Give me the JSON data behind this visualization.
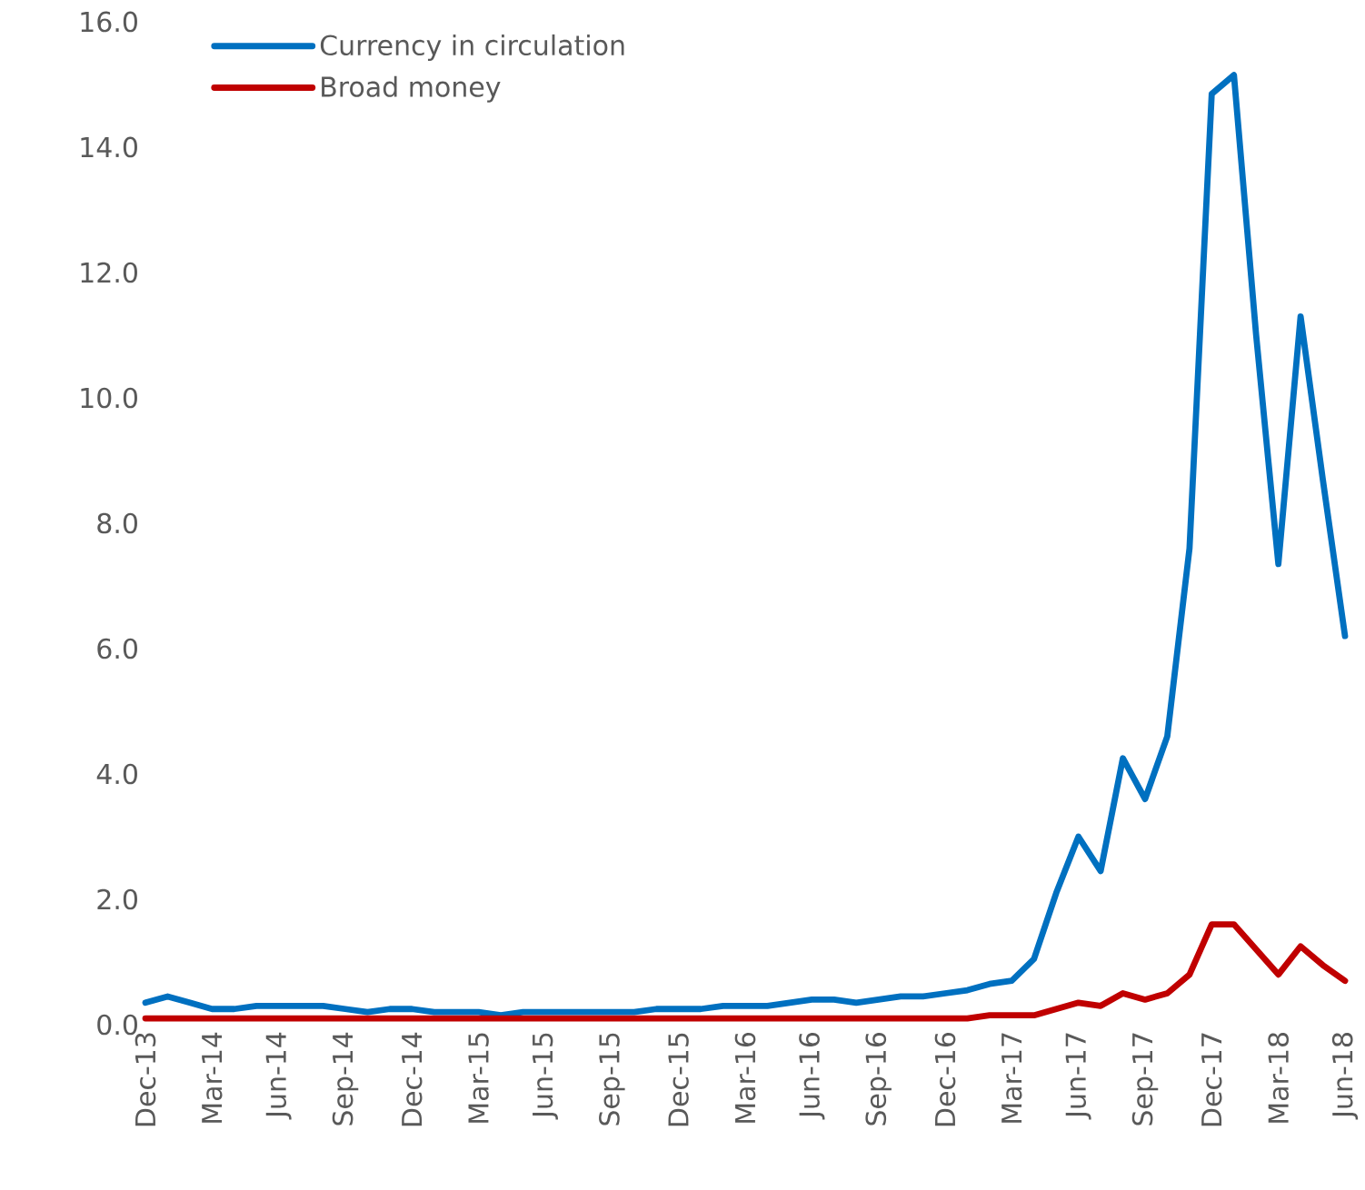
{
  "chart_data": {
    "type": "line",
    "categories": [
      "Dec-13",
      null,
      null,
      "Mar-14",
      null,
      null,
      "Jun-14",
      null,
      null,
      "Sep-14",
      null,
      null,
      "Dec-14",
      null,
      null,
      "Mar-15",
      null,
      null,
      "Jun-15",
      null,
      null,
      "Sep-15",
      null,
      null,
      "Dec-15",
      null,
      null,
      "Mar-16",
      null,
      null,
      "Jun-16",
      null,
      null,
      "Sep-16",
      null,
      null,
      "Dec-16",
      null,
      null,
      "Mar-17",
      null,
      null,
      "Jun-17",
      null,
      null,
      "Sep-17",
      null,
      null,
      "Dec-17",
      null,
      null,
      "Mar-18",
      null,
      null,
      "Jun-18"
    ],
    "series": [
      {
        "name": "Currency in circulation",
        "color": "#0070c0",
        "values": [
          0.35,
          0.45,
          0.35,
          0.25,
          0.25,
          0.3,
          0.3,
          0.3,
          0.3,
          0.25,
          0.2,
          0.25,
          0.25,
          0.2,
          0.2,
          0.2,
          0.15,
          0.2,
          0.2,
          0.2,
          0.2,
          0.2,
          0.2,
          0.25,
          0.25,
          0.25,
          0.3,
          0.3,
          0.3,
          0.35,
          0.4,
          0.4,
          0.35,
          0.4,
          0.45,
          0.45,
          0.5,
          0.55,
          0.65,
          0.7,
          1.05,
          2.1,
          3.0,
          2.45,
          4.25,
          3.6,
          4.6,
          7.6,
          14.85,
          15.15,
          11.0,
          7.35,
          11.3,
          8.7,
          6.2
        ]
      },
      {
        "name": "Broad money",
        "color": "#c00000",
        "values": [
          0.1,
          0.1,
          0.1,
          0.1,
          0.1,
          0.1,
          0.1,
          0.1,
          0.1,
          0.1,
          0.1,
          0.1,
          0.1,
          0.1,
          0.1,
          0.1,
          0.1,
          0.1,
          0.1,
          0.1,
          0.1,
          0.1,
          0.1,
          0.1,
          0.1,
          0.1,
          0.1,
          0.1,
          0.1,
          0.1,
          0.1,
          0.1,
          0.1,
          0.1,
          0.1,
          0.1,
          0.1,
          0.1,
          0.15,
          0.15,
          0.15,
          0.25,
          0.35,
          0.3,
          0.5,
          0.4,
          0.5,
          0.8,
          1.6,
          1.6,
          1.2,
          0.8,
          1.25,
          0.95,
          0.7
        ]
      }
    ],
    "ylim": [
      0,
      16
    ],
    "yticks": [
      {
        "value": 0,
        "label": "0.0"
      },
      {
        "value": 2,
        "label": "2.0"
      },
      {
        "value": 4,
        "label": "4.0"
      },
      {
        "value": 6,
        "label": "6.0"
      },
      {
        "value": 8,
        "label": "8.0"
      },
      {
        "value": 10,
        "label": "10.0"
      },
      {
        "value": 12,
        "label": "12.0"
      },
      {
        "value": 14,
        "label": "14.0"
      },
      {
        "value": 16,
        "label": "16.0"
      }
    ],
    "legend": "top left"
  }
}
